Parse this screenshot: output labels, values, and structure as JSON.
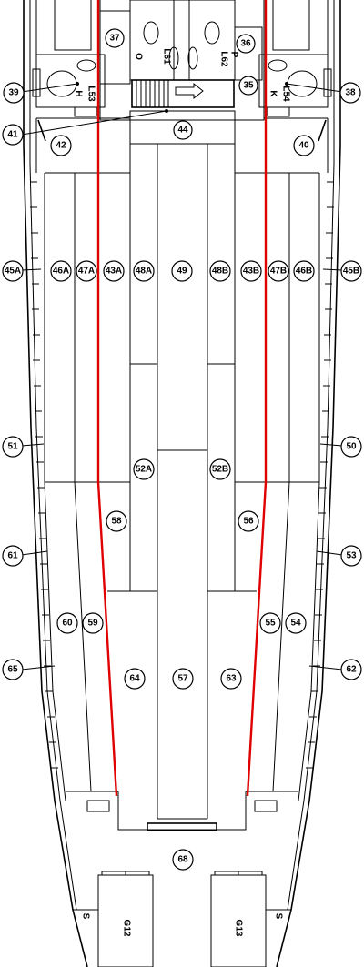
{
  "zones": {
    "o": "O",
    "l61": "L61",
    "p": "P",
    "l62": "L62",
    "h": "H",
    "l53": "L53",
    "k": "K",
    "l54": "L54",
    "s_top": "S",
    "s_left": "S",
    "s_right": "S",
    "g12": "G12",
    "g13": "G13"
  },
  "callouts": [
    "37",
    "36",
    "39",
    "35",
    "38",
    "41",
    "44",
    "42",
    "40",
    "45A",
    "46A",
    "47A",
    "43A",
    "48A",
    "49",
    "48B",
    "43B",
    "47B",
    "46B",
    "45B",
    "51",
    "50",
    "52A",
    "52B",
    "58",
    "56",
    "61",
    "53",
    "60",
    "59",
    "55",
    "54",
    "65",
    "62",
    "64",
    "57",
    "63",
    "68"
  ]
}
